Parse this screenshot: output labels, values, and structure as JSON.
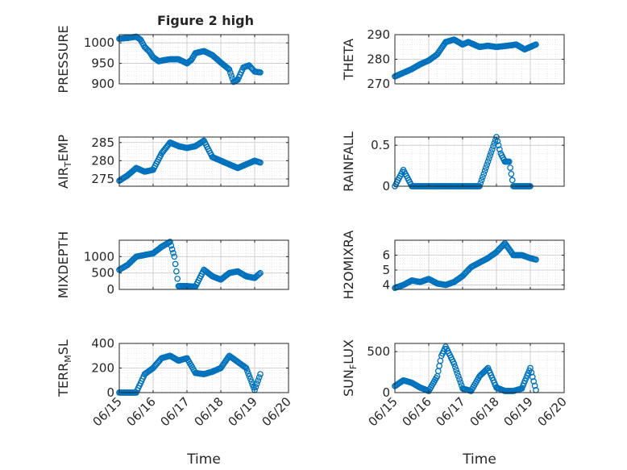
{
  "figure": {
    "title": "Figure 2 high"
  },
  "chart_data": [
    {
      "id": "pressure",
      "type": "scatter",
      "title": "Figure 2 high",
      "ylabel": "PRESSURE",
      "xlabel": "",
      "ylim": [
        900,
        1020
      ],
      "yticks": [
        900,
        950,
        1000
      ],
      "xlim": [
        "06/15",
        "06/20"
      ],
      "x": [
        "06/15 00:00",
        "06/15 06:00",
        "06/15 12:00",
        "06/15 15:00",
        "06/15 18:00",
        "06/15 21:00",
        "06/16 00:00",
        "06/16 04:00",
        "06/16 08:00",
        "06/16 12:00",
        "06/16 18:00",
        "06/17 00:00",
        "06/17 03:00",
        "06/17 06:00",
        "06/17 12:00",
        "06/17 18:00",
        "06/18 00:00",
        "06/18 06:00",
        "06/18 09:00",
        "06/18 12:00",
        "06/18 16:00",
        "06/18 20:00",
        "06/19 00:00",
        "06/19 04:00"
      ],
      "y": [
        1010,
        1012,
        1015,
        1008,
        990,
        980,
        965,
        955,
        958,
        960,
        960,
        950,
        958,
        975,
        980,
        970,
        952,
        935,
        905,
        910,
        940,
        945,
        930,
        928
      ],
      "series": []
    },
    {
      "id": "theta",
      "type": "scatter",
      "ylabel": "THETA",
      "xlabel": "",
      "ylim": [
        270,
        290
      ],
      "yticks": [
        270,
        280,
        290
      ],
      "xlim": [
        "06/15",
        "06/20"
      ],
      "x": [
        "06/15 00:00",
        "06/15 06:00",
        "06/15 12:00",
        "06/15 18:00",
        "06/16 00:00",
        "06/16 06:00",
        "06/16 12:00",
        "06/16 18:00",
        "06/17 00:00",
        "06/17 04:00",
        "06/17 12:00",
        "06/17 18:00",
        "06/18 00:00",
        "06/18 08:00",
        "06/18 14:00",
        "06/18 20:00",
        "06/19 04:00"
      ],
      "y": [
        273,
        274.5,
        276,
        278,
        279.5,
        282,
        287,
        288,
        286,
        287,
        285,
        285.5,
        285,
        285.5,
        286,
        284,
        286
      ],
      "series": []
    },
    {
      "id": "air_temp",
      "type": "scatter",
      "ylabel": "AIR_TEMP",
      "xlabel": "",
      "ylim": [
        273,
        286.5
      ],
      "yticks": [
        275,
        280,
        285
      ],
      "xlim": [
        "06/15",
        "06/20"
      ],
      "x": [
        "06/15 00:00",
        "06/15 06:00",
        "06/15 12:00",
        "06/15 18:00",
        "06/16 00:00",
        "06/16 06:00",
        "06/16 12:00",
        "06/16 18:00",
        "06/17 00:00",
        "06/17 06:00",
        "06/17 12:00",
        "06/17 18:00",
        "06/18 00:00",
        "06/18 06:00",
        "06/18 12:00",
        "06/18 18:00",
        "06/19 00:00",
        "06/19 04:00"
      ],
      "y": [
        274.5,
        276,
        278,
        277,
        277.5,
        282,
        285,
        284,
        283.5,
        284,
        285.5,
        281,
        280,
        279,
        278,
        279,
        280,
        279.5
      ],
      "series": []
    },
    {
      "id": "rainfall",
      "type": "scatter",
      "ylabel": "RAINFALL",
      "xlabel": "",
      "ylim": [
        0,
        0.6
      ],
      "yticks": [
        0,
        0.5
      ],
      "xlim": [
        "06/15",
        "06/20"
      ],
      "x": [
        "06/15 00:00",
        "06/15 06:00",
        "06/15 12:00",
        "06/16 00:00",
        "06/16 12:00",
        "06/17 00:00",
        "06/17 12:00",
        "06/17 18:00",
        "06/18 00:00",
        "06/18 03:00",
        "06/18 06:00",
        "06/18 09:00",
        "06/18 12:00",
        "06/18 18:00",
        "06/19 00:00"
      ],
      "y": [
        0,
        0.2,
        0,
        0,
        0,
        0,
        0,
        0.3,
        0.6,
        0.4,
        0.3,
        0.3,
        0,
        0,
        0
      ],
      "series": []
    },
    {
      "id": "mixdepth",
      "type": "scatter",
      "ylabel": "MIXDEPTH",
      "xlabel": "",
      "ylim": [
        0,
        1500
      ],
      "yticks": [
        0,
        500,
        1000
      ],
      "xlim": [
        "06/15",
        "06/20"
      ],
      "x": [
        "06/15 00:00",
        "06/15 06:00",
        "06/15 12:00",
        "06/15 18:00",
        "06/16 00:00",
        "06/16 06:00",
        "06/16 12:00",
        "06/16 15:00",
        "06/16 18:00",
        "06/17 00:00",
        "06/17 06:00",
        "06/17 12:00",
        "06/17 18:00",
        "06/18 00:00",
        "06/18 06:00",
        "06/18 12:00",
        "06/18 18:00",
        "06/19 00:00",
        "06/19 04:00"
      ],
      "y": [
        600,
        750,
        1000,
        1050,
        1100,
        1300,
        1450,
        1000,
        100,
        100,
        80,
        600,
        400,
        300,
        500,
        550,
        400,
        350,
        500
      ],
      "series": []
    },
    {
      "id": "h2omixra",
      "type": "scatter",
      "ylabel": "H2OMIXRA",
      "xlabel": "",
      "ylim": [
        3.7,
        7
      ],
      "yticks": [
        4,
        5,
        6
      ],
      "xlim": [
        "06/15",
        "06/20"
      ],
      "x": [
        "06/15 00:00",
        "06/15 06:00",
        "06/15 12:00",
        "06/15 18:00",
        "06/16 00:00",
        "06/16 06:00",
        "06/16 12:00",
        "06/16 18:00",
        "06/17 00:00",
        "06/17 06:00",
        "06/17 12:00",
        "06/17 18:00",
        "06/18 00:00",
        "06/18 06:00",
        "06/18 12:00",
        "06/18 18:00",
        "06/19 00:00",
        "06/19 04:00"
      ],
      "y": [
        3.8,
        4.0,
        4.3,
        4.2,
        4.4,
        4.1,
        4.0,
        4.2,
        4.6,
        5.2,
        5.5,
        5.8,
        6.2,
        6.8,
        6.0,
        6.0,
        5.8,
        5.7
      ],
      "series": []
    },
    {
      "id": "terr_msl",
      "type": "scatter",
      "ylabel": "TERR_MSL",
      "xlabel": "Time",
      "ylim": [
        0,
        400
      ],
      "yticks": [
        0,
        200,
        400
      ],
      "xlim": [
        "06/15",
        "06/20"
      ],
      "xticks": [
        "06/15",
        "06/16",
        "06/17",
        "06/18",
        "06/19",
        "06/20"
      ],
      "x": [
        "06/15 00:00",
        "06/15 06:00",
        "06/15 12:00",
        "06/15 18:00",
        "06/16 00:00",
        "06/16 06:00",
        "06/16 12:00",
        "06/16 18:00",
        "06/17 00:00",
        "06/17 06:00",
        "06/17 12:00",
        "06/17 18:00",
        "06/18 00:00",
        "06/18 06:00",
        "06/18 12:00",
        "06/18 18:00",
        "06/19 00:00",
        "06/19 04:00"
      ],
      "y": [
        0,
        0,
        0,
        150,
        200,
        280,
        300,
        260,
        280,
        160,
        150,
        170,
        200,
        300,
        250,
        200,
        20,
        150
      ],
      "series": []
    },
    {
      "id": "sun_flux",
      "type": "scatter",
      "ylabel": "SUN_FLUX",
      "xlabel": "Time",
      "ylim": [
        0,
        600
      ],
      "yticks": [
        0,
        500
      ],
      "xlim": [
        "06/15",
        "06/20"
      ],
      "xticks": [
        "06/15",
        "06/16",
        "06/17",
        "06/18",
        "06/19",
        "06/20"
      ],
      "x": [
        "06/15 00:00",
        "06/15 06:00",
        "06/15 12:00",
        "06/15 18:00",
        "06/16 00:00",
        "06/16 06:00",
        "06/16 09:00",
        "06/16 12:00",
        "06/16 18:00",
        "06/17 00:00",
        "06/17 06:00",
        "06/17 12:00",
        "06/17 18:00",
        "06/18 00:00",
        "06/18 06:00",
        "06/18 12:00",
        "06/18 18:00",
        "06/19 00:00",
        "06/19 04:00"
      ],
      "y": [
        80,
        150,
        120,
        60,
        20,
        200,
        450,
        560,
        350,
        50,
        20,
        200,
        300,
        60,
        20,
        20,
        50,
        300,
        30
      ],
      "series": []
    }
  ]
}
